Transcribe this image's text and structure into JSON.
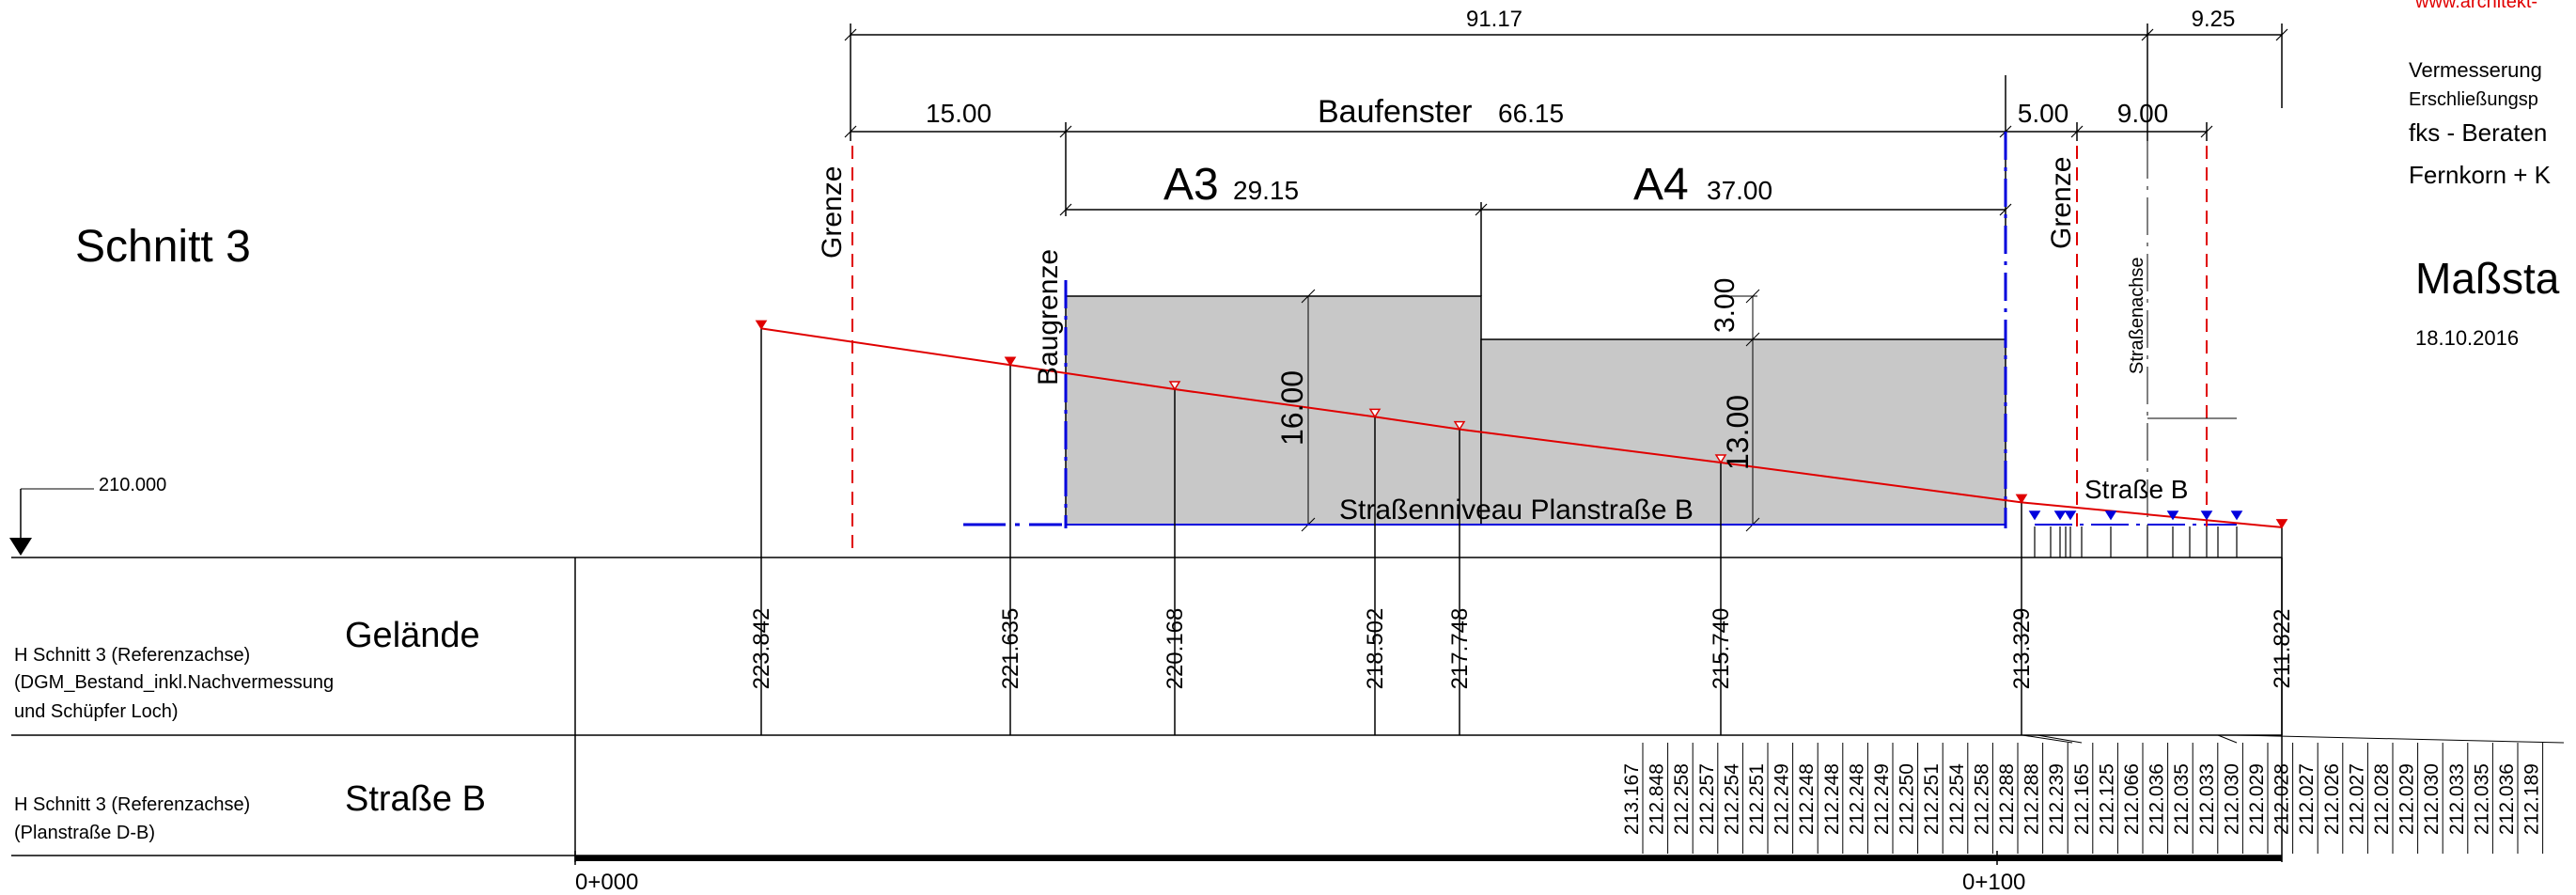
{
  "section_title": "Schnitt 3",
  "header_partial": {
    "url": "www.architekt-",
    "line1": "Vermesserung",
    "line2": "Erschließungsp",
    "line3": "fks - Beraten",
    "line4": "Fernkorn + K",
    "scale": "Maßsta",
    "date": "18.10.2016"
  },
  "reference_level": "210.000",
  "labels": {
    "grenze_left": "Grenze",
    "grenze_right": "Grenze",
    "baugrenze": "Baugrenze",
    "strassenachse": "Straßenachse",
    "strasse_b": "Straße B",
    "strassenniveau": "Straßenniveau Planstraße B",
    "a3": "A3",
    "a4": "A4",
    "baufenster": "Baufenster"
  },
  "dimensions": {
    "total": "91.17",
    "road_extra": "9.25",
    "setback": "15.00",
    "baufenster": "66.15",
    "a3": "29.15",
    "a4": "37.00",
    "gap_5": "5.00",
    "gap_9": "9.00",
    "height_a3": "16.00",
    "height_a4": "13.00",
    "step": "3.00"
  },
  "bands": [
    {
      "title": "Gelände",
      "desc1": "H Schnitt 3 (Referenzachse)",
      "desc2": "(DGM_Bestand_inkl.Nachvermessung",
      "desc3": "und Schüpfer Loch)"
    },
    {
      "title": "Straße B",
      "desc1": "H Schnitt 3 (Referenzachse)",
      "desc2": "(Planstraße D-B)",
      "desc3": ""
    }
  ],
  "gelaende_values": [
    "223.842",
    "221.635",
    "220.168",
    "218.502",
    "217.748",
    "215.740",
    "213.329",
    "211.822"
  ],
  "strasse_values": [
    "213.167",
    "212.848",
    "212.258",
    "212.257",
    "212.254",
    "212.251",
    "212.249",
    "212.248",
    "212.248",
    "212.248",
    "212.249",
    "212.250",
    "212.251",
    "212.254",
    "212.258",
    "212.288",
    "212.288",
    "212.239",
    "212.165",
    "212.125",
    "212.066",
    "212.036",
    "212.035",
    "212.033",
    "212.030",
    "212.029",
    "212.028",
    "212.027",
    "212.026",
    "212.027",
    "212.028",
    "212.029",
    "212.030",
    "212.033",
    "212.035",
    "212.036",
    "212.189"
  ],
  "stations": [
    "0+000",
    "0+100"
  ],
  "colors": {
    "terrain": "#e00000",
    "boundary": "#e00000",
    "baugrenze": "#0000dd",
    "building": "#c8c8c8"
  }
}
